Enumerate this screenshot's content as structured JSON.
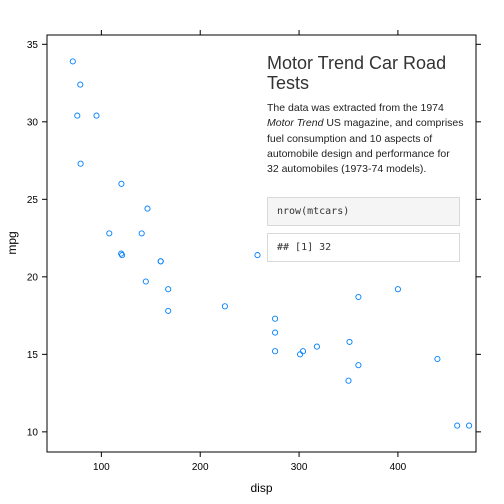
{
  "chart_data": {
    "type": "scatter",
    "title": "",
    "xlabel": "disp",
    "ylabel": "mpg",
    "xlim": [
      45,
      479
    ],
    "ylim": [
      8.7,
      35.6
    ],
    "xticks": [
      100,
      200,
      300,
      400
    ],
    "yticks": [
      10,
      15,
      20,
      25,
      30,
      35
    ],
    "grid": false,
    "point_color": "#0080ff",
    "points": [
      {
        "x": 71.1,
        "y": 33.9
      },
      {
        "x": 78.7,
        "y": 32.4
      },
      {
        "x": 75.7,
        "y": 30.4
      },
      {
        "x": 95.1,
        "y": 30.4
      },
      {
        "x": 79.0,
        "y": 27.3
      },
      {
        "x": 120.3,
        "y": 26.0
      },
      {
        "x": 146.7,
        "y": 24.4
      },
      {
        "x": 108.0,
        "y": 22.8
      },
      {
        "x": 140.8,
        "y": 22.8
      },
      {
        "x": 120.1,
        "y": 21.5
      },
      {
        "x": 121.0,
        "y": 21.4
      },
      {
        "x": 258.0,
        "y": 21.4
      },
      {
        "x": 160.0,
        "y": 21.0
      },
      {
        "x": 160.0,
        "y": 21.0
      },
      {
        "x": 145.0,
        "y": 19.7
      },
      {
        "x": 167.6,
        "y": 19.2
      },
      {
        "x": 400.0,
        "y": 19.2
      },
      {
        "x": 360.0,
        "y": 18.7
      },
      {
        "x": 225.0,
        "y": 18.1
      },
      {
        "x": 167.6,
        "y": 17.8
      },
      {
        "x": 275.8,
        "y": 17.3
      },
      {
        "x": 275.8,
        "y": 16.4
      },
      {
        "x": 318.0,
        "y": 15.5
      },
      {
        "x": 304.0,
        "y": 15.2
      },
      {
        "x": 275.8,
        "y": 15.2
      },
      {
        "x": 301.0,
        "y": 15.0
      },
      {
        "x": 351.0,
        "y": 15.8
      },
      {
        "x": 440.0,
        "y": 14.7
      },
      {
        "x": 360.0,
        "y": 14.3
      },
      {
        "x": 350.0,
        "y": 13.3
      },
      {
        "x": 460.0,
        "y": 10.4
      },
      {
        "x": 472.0,
        "y": 10.4
      }
    ]
  },
  "panel": {
    "title": "Motor Trend Car Road Tests",
    "description_before": "The data was extracted from the 1974 ",
    "description_italic": "Motor Trend",
    "description_after": " US magazine, and comprises fuel consumption and 10 aspects of automobile design and performance for 32 automobiles (1973-74 models).",
    "code_input": "nrow(mtcars)",
    "code_output": "## [1]  32"
  }
}
